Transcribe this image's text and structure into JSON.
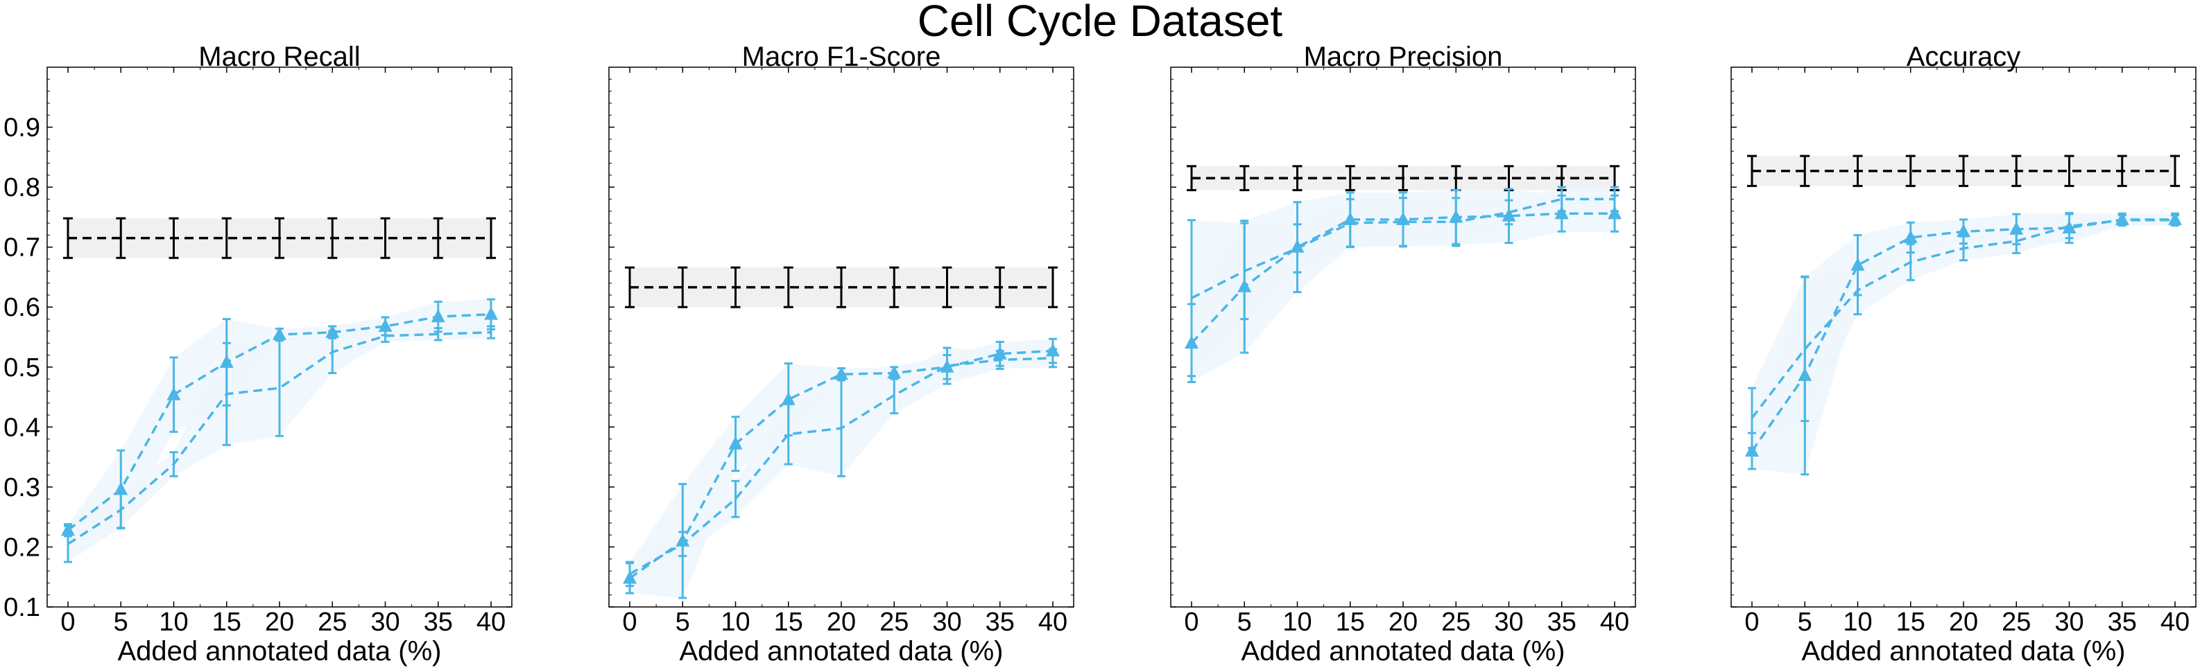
{
  "figure": {
    "title": "Cell Cycle Dataset"
  },
  "colors": {
    "series": "#4bb6e6",
    "band": "#eef7fd",
    "baseline": "#000000",
    "baseline_band": "#f0f0f0"
  },
  "chart_data": [
    {
      "type": "line",
      "title": "Macro Recall",
      "xlabel": "Added annotated data (%)",
      "ylabel": "",
      "x": [
        0,
        5,
        10,
        15,
        20,
        25,
        30,
        35,
        40
      ],
      "ylim": [
        0.1,
        1.0
      ],
      "yticks": [
        0.1,
        0.2,
        0.3,
        0.4,
        0.5,
        0.6,
        0.7,
        0.8,
        0.9
      ],
      "show_y_tick_labels": true,
      "baseline": {
        "value": 0.715,
        "err": 0.033
      },
      "series": [
        {
          "marker": "triangle",
          "values": [
            0.228,
            0.296,
            0.454,
            0.508,
            0.554,
            0.558,
            0.568,
            0.584,
            0.588
          ],
          "err": [
            0.01,
            0.065,
            0.062,
            0.072,
            0.01,
            0.01,
            0.015,
            0.025,
            0.025
          ]
        },
        {
          "marker": "none",
          "values": [
            0.205,
            0.262,
            0.338,
            0.455,
            0.465,
            0.525,
            0.552,
            0.555,
            0.558
          ],
          "err": [
            0.03,
            0.03,
            0.02,
            0.085,
            0.08,
            0.035,
            0.01,
            0.01,
            0.01
          ]
        }
      ]
    },
    {
      "type": "line",
      "title": "Macro F1-Score",
      "xlabel": "Added annotated data (%)",
      "ylabel": "",
      "x": [
        0,
        5,
        10,
        15,
        20,
        25,
        30,
        35,
        40
      ],
      "ylim": [
        0.1,
        1.0
      ],
      "yticks": [
        0.1,
        0.2,
        0.3,
        0.4,
        0.5,
        0.6,
        0.7,
        0.8,
        0.9
      ],
      "show_y_tick_labels": false,
      "baseline": {
        "value": 0.633,
        "err": 0.033
      },
      "series": [
        {
          "marker": "triangle",
          "values": [
            0.148,
            0.21,
            0.372,
            0.446,
            0.488,
            0.49,
            0.5,
            0.522,
            0.527
          ],
          "err": [
            0.025,
            0.095,
            0.045,
            0.06,
            0.01,
            0.01,
            0.02,
            0.02,
            0.02
          ]
        },
        {
          "marker": "none",
          "values": [
            0.155,
            0.205,
            0.28,
            0.388,
            0.398,
            0.453,
            0.502,
            0.512,
            0.515
          ],
          "err": [
            0.02,
            0.02,
            0.03,
            0.05,
            0.08,
            0.03,
            0.03,
            0.015,
            0.015
          ]
        }
      ]
    },
    {
      "type": "line",
      "title": "Macro Precision",
      "xlabel": "Added annotated data (%)",
      "ylabel": "",
      "x": [
        0,
        5,
        10,
        15,
        20,
        25,
        30,
        35,
        40
      ],
      "ylim": [
        0.1,
        1.0
      ],
      "yticks": [
        0.1,
        0.2,
        0.3,
        0.4,
        0.5,
        0.6,
        0.7,
        0.8,
        0.9
      ],
      "show_y_tick_labels": false,
      "baseline": {
        "value": 0.815,
        "err": 0.02
      },
      "series": [
        {
          "marker": "triangle",
          "values": [
            0.54,
            0.634,
            0.7,
            0.746,
            0.746,
            0.75,
            0.752,
            0.756,
            0.756
          ],
          "err": [
            0.065,
            0.11,
            0.075,
            0.045,
            0.045,
            0.045,
            0.045,
            0.03,
            0.03
          ]
        },
        {
          "marker": "none",
          "values": [
            0.615,
            0.66,
            0.698,
            0.74,
            0.742,
            0.742,
            0.758,
            0.78,
            0.78
          ],
          "err": [
            0.13,
            0.08,
            0.04,
            0.04,
            0.04,
            0.04,
            0.02,
            0.02,
            0.02
          ]
        }
      ]
    },
    {
      "type": "line",
      "title": "Accuracy",
      "xlabel": "Added annotated data (%)",
      "ylabel": "",
      "x": [
        0,
        5,
        10,
        15,
        20,
        25,
        30,
        35,
        40
      ],
      "ylim": [
        0.1,
        1.0
      ],
      "yticks": [
        0.1,
        0.2,
        0.3,
        0.4,
        0.5,
        0.6,
        0.7,
        0.8,
        0.9
      ],
      "show_y_tick_labels": false,
      "baseline": {
        "value": 0.827,
        "err": 0.025
      },
      "series": [
        {
          "marker": "triangle",
          "values": [
            0.36,
            0.486,
            0.67,
            0.716,
            0.726,
            0.73,
            0.732,
            0.746,
            0.746
          ],
          "err": [
            0.03,
            0.165,
            0.05,
            0.025,
            0.02,
            0.025,
            0.025,
            0.01,
            0.01
          ]
        },
        {
          "marker": "none",
          "values": [
            0.415,
            0.53,
            0.628,
            0.675,
            0.698,
            0.71,
            0.735,
            0.745,
            0.745
          ],
          "err": [
            0.05,
            0.12,
            0.04,
            0.03,
            0.02,
            0.02,
            0.02,
            0.008,
            0.008
          ]
        }
      ]
    }
  ]
}
